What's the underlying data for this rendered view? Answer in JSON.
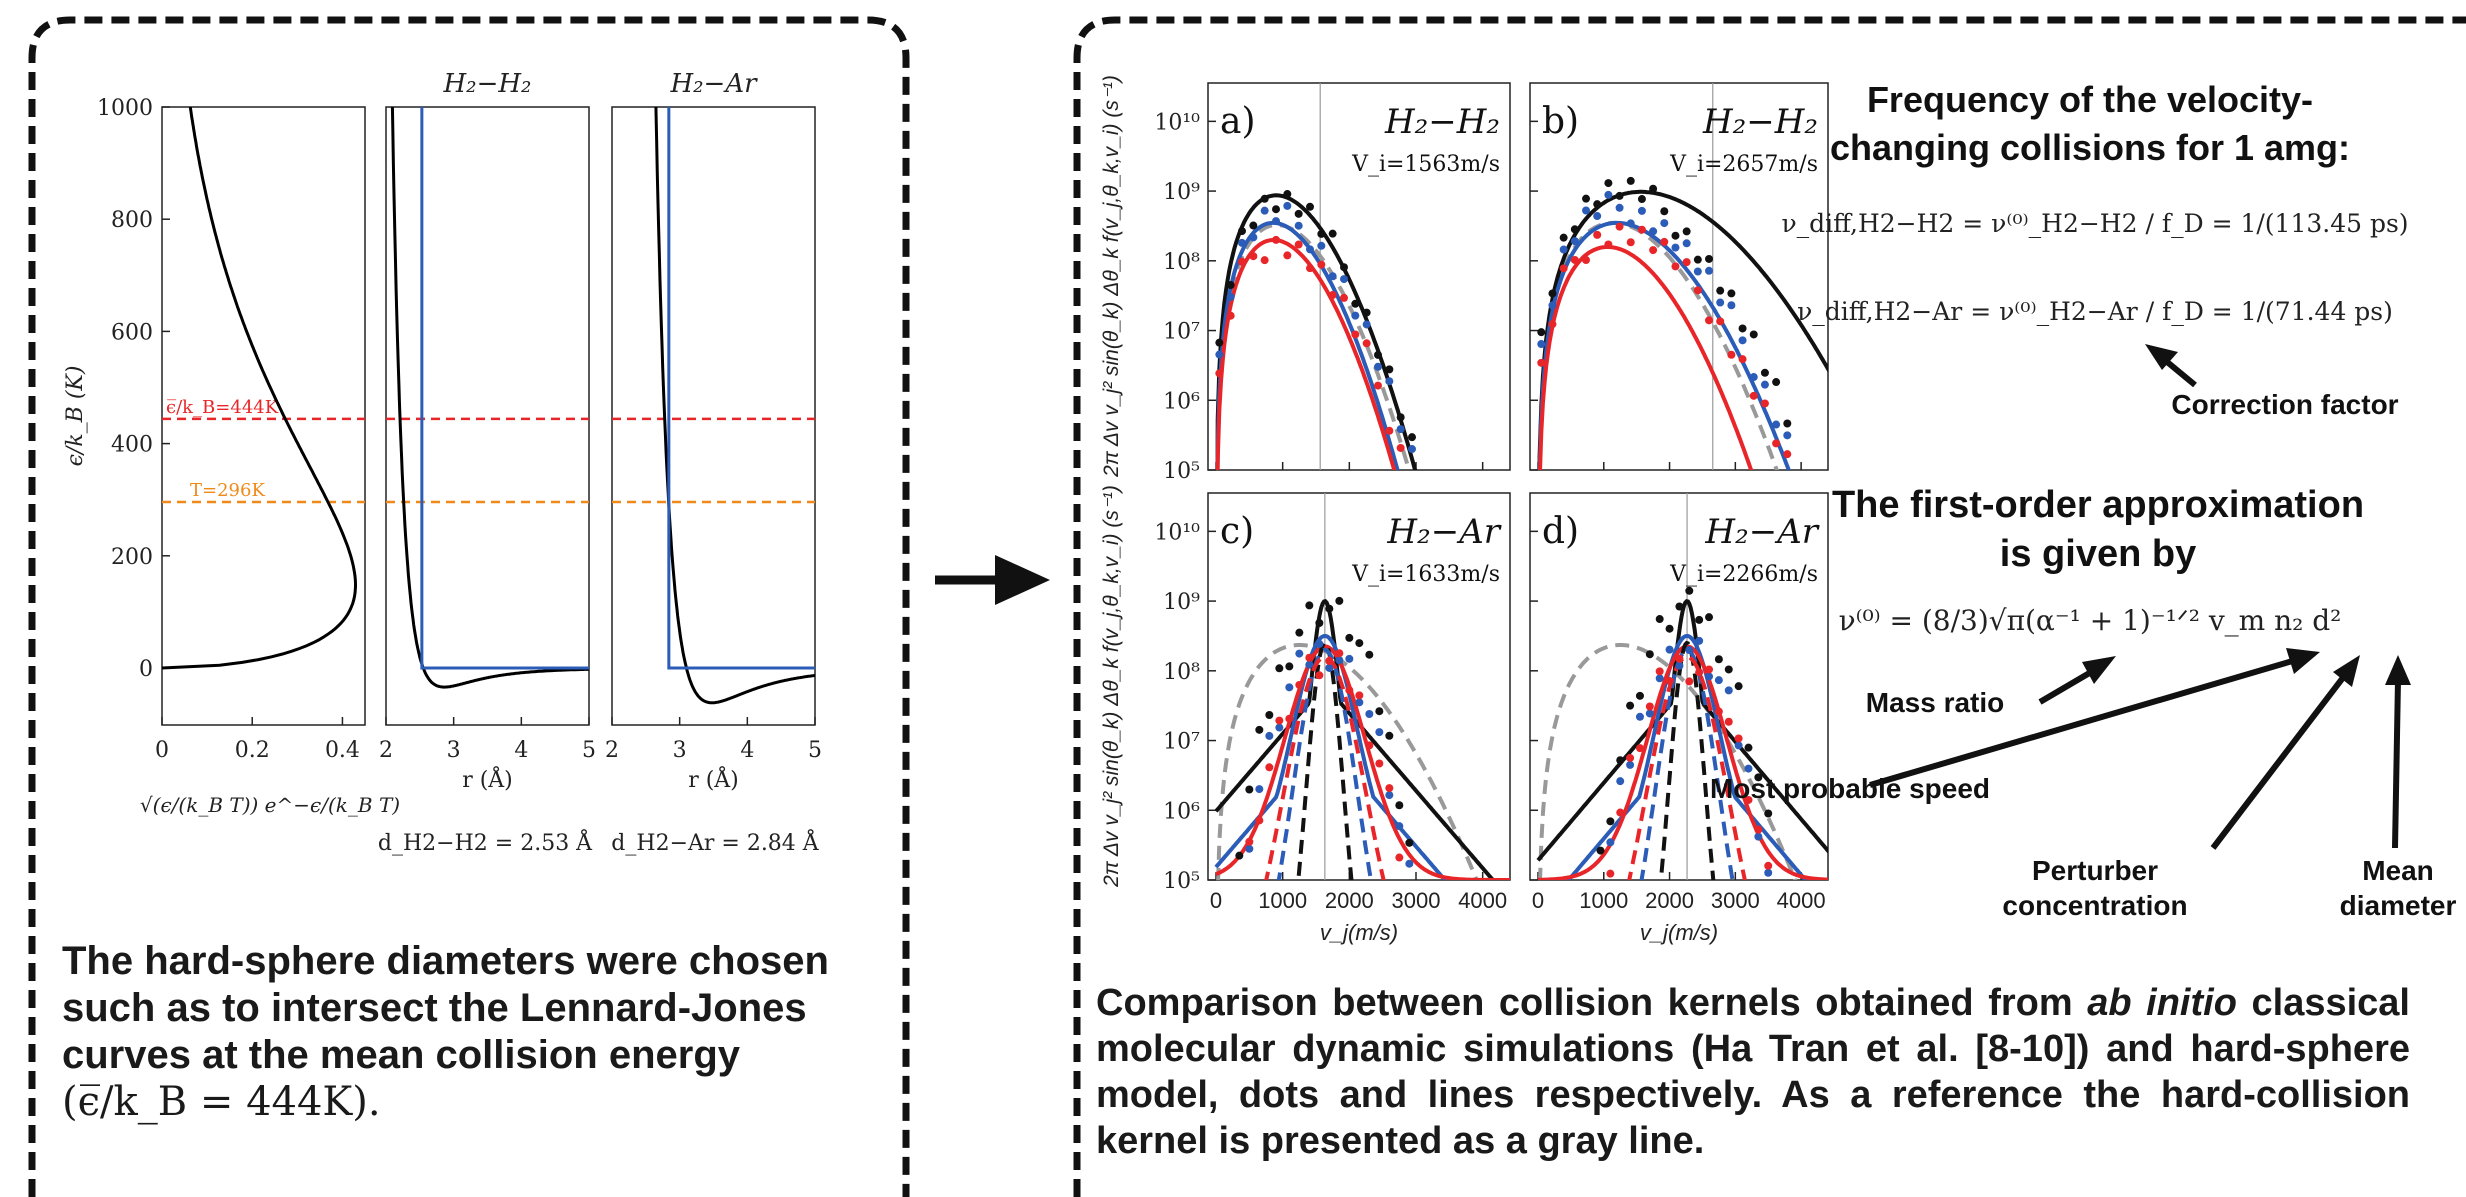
{
  "left_panel": {
    "plot_titles": {
      "h2h2": "H₂−H₂",
      "h2ar": "H₂−Ar"
    },
    "y_axis_label": "ϵ/k_B (K)",
    "y_ticks": [
      "0",
      "200",
      "400",
      "600",
      "800",
      "1000"
    ],
    "x_ticks_left": [
      "0",
      "0.2",
      "0.4"
    ],
    "x_ticks_r": [
      "2",
      "3",
      "4",
      "5"
    ],
    "x_label_left": "√(ϵ/(k_B T)) e^−ϵ/(k_B T)",
    "x_label_r": "r (Å)",
    "eps_line_label": "ϵ̅/k_B=444K",
    "T_line_label": "T=296K",
    "eps_level": 444,
    "T_level": 296,
    "d_h2h2": "d_H2−H2 = 2.53 Å",
    "d_h2ar": "d_H2−Ar = 2.84 Å",
    "caption_line1": "The hard-sphere diameters were chosen",
    "caption_line2": "such as to intersect the Lennard-Jones",
    "caption_line3": "curves at the mean collision energy",
    "caption_line4": "(ϵ̅/k_B = 444K).",
    "colors": {
      "curve": "#000000",
      "hard_sphere": "#2b5cb8",
      "eps_line": "#e8262a",
      "T_line": "#ef8a1a"
    }
  },
  "right_panel": {
    "panels": [
      {
        "id": "a)",
        "title": "H₂−H₂",
        "vi": "V_i=1563m/s"
      },
      {
        "id": "b)",
        "title": "H₂−H₂",
        "vi": "V_i=2657m/s"
      },
      {
        "id": "c)",
        "title": "H₂−Ar",
        "vi": "V_i=1633m/s"
      },
      {
        "id": "d)",
        "title": "H₂−Ar",
        "vi": "V_i=2266m/s"
      }
    ],
    "y_axis_label": "2π Δv v_j² sin(θ_k) Δθ_k f(v_j,θ_k,v_i) (s⁻¹)",
    "y_ticks": [
      "10⁵",
      "10⁶",
      "10⁷",
      "10⁸",
      "10⁹",
      "10¹⁰"
    ],
    "x_ticks": [
      "0",
      "1000",
      "2000",
      "3000",
      "4000"
    ],
    "x_label": "v_j(m/s)",
    "freq_title_1": "Frequency of the velocity-",
    "freq_title_2": "changing collisions for 1 amg:",
    "eq1": "ν_diff,H2−H2 = ν⁽⁰⁾_H2−H2 / f_D = 1/(113.45 ps)",
    "eq2": "ν_diff,H2−Ar = ν⁽⁰⁾_H2−Ar / f_D = 1/(71.44 ps)",
    "correction_label": "Correction factor",
    "approx_title_1": "The first-order approximation",
    "approx_title_2": "is given by",
    "eq3": "ν⁽⁰⁾ = (8/3)√π(α⁻¹ + 1)⁻¹ᐟ² v_m n₂ d²",
    "mass_ratio": "Mass ratio",
    "most_probable": "Most probable speed",
    "perturber_1": "Perturber",
    "perturber_2": "concentration",
    "mean_1": "Mean",
    "mean_2": "diameter",
    "caption_a": "Comparison between collision kernels obtained from ",
    "caption_italic": "ab initio",
    "caption_b": " classical molecular dynamic simulations (Ha Tran et al. [8-10]) and hard-sphere model, dots and lines respectively. As a reference the hard-collision kernel is presented as a gray line.",
    "colors": {
      "black": "#111111",
      "blue": "#2b5cb8",
      "red": "#e8262a",
      "gray": "#999999"
    }
  }
}
